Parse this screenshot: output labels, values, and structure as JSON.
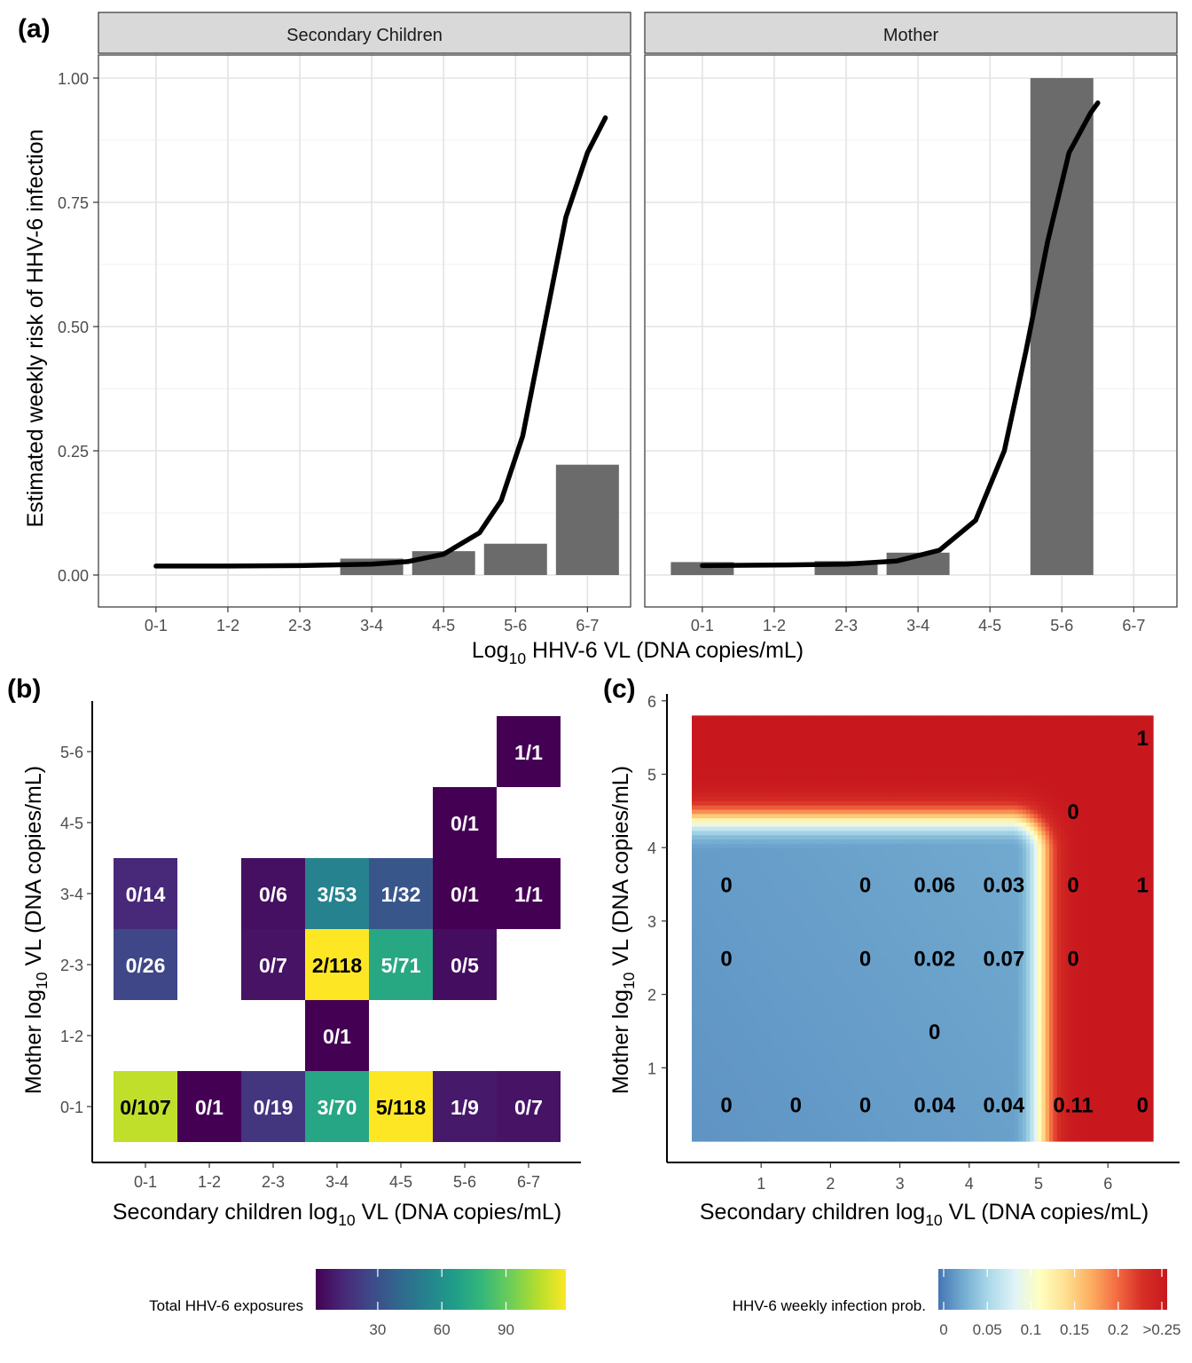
{
  "panel_labels": {
    "a": "(a)",
    "b": "(b)",
    "c": "(c)"
  },
  "chart_data": [
    {
      "panel": "(a)",
      "type": "bar",
      "ylabel": "Estimated weekly risk of HHV-6 infection",
      "xlabel_main": "Log",
      "xlabel_sub": "10",
      "xlabel_rest": " HHV-6 VL (DNA copies/mL)",
      "categories": [
        "0-1",
        "1-2",
        "2-3",
        "3-4",
        "4-5",
        "5-6",
        "6-7"
      ],
      "ylim": [
        0,
        1.05
      ],
      "yticks": [
        0,
        0.25,
        0.5,
        0.75,
        1.0
      ],
      "ytick_labels": [
        "0.00",
        "0.25",
        "0.50",
        "0.75",
        "1.00"
      ],
      "grid": true,
      "bar_color": "#6b6b6b",
      "facets": [
        {
          "name": "Secondary Children",
          "bars": [
            null,
            null,
            null,
            0.033,
            0.048,
            0.063,
            0.222
          ],
          "curve": [
            [
              0.5,
              0.018
            ],
            [
              1.5,
              0.018
            ],
            [
              2.5,
              0.019
            ],
            [
              3.5,
              0.022
            ],
            [
              4.0,
              0.027
            ],
            [
              4.5,
              0.042
            ],
            [
              5.0,
              0.085
            ],
            [
              5.3,
              0.15
            ],
            [
              5.6,
              0.28
            ],
            [
              5.9,
              0.5
            ],
            [
              6.2,
              0.72
            ],
            [
              6.5,
              0.85
            ],
            [
              6.75,
              0.92
            ]
          ]
        },
        {
          "name": "Mother",
          "bars": [
            0.026,
            null,
            0.028,
            0.045,
            null,
            1.0,
            null
          ],
          "curve": [
            [
              0.5,
              0.019
            ],
            [
              1.5,
              0.02
            ],
            [
              2.5,
              0.022
            ],
            [
              3.2,
              0.028
            ],
            [
              3.8,
              0.05
            ],
            [
              4.3,
              0.11
            ],
            [
              4.7,
              0.25
            ],
            [
              5.0,
              0.45
            ],
            [
              5.3,
              0.67
            ],
            [
              5.6,
              0.85
            ],
            [
              5.9,
              0.93
            ],
            [
              6.0,
              0.95
            ]
          ]
        }
      ]
    },
    {
      "panel": "(b)",
      "type": "heatmap",
      "xlabel_main": "Secondary children log",
      "xlabel_sub": "10",
      "xlabel_rest": " VL (DNA copies/mL)",
      "ylabel_main": "Mother log",
      "ylabel_sub": "10",
      "ylabel_rest": " VL (DNA copies/mL)",
      "x_categories": [
        "0-1",
        "1-2",
        "2-3",
        "3-4",
        "4-5",
        "5-6",
        "6-7"
      ],
      "y_categories": [
        "0-1",
        "1-2",
        "2-3",
        "3-4",
        "4-5",
        "5-6"
      ],
      "cells": [
        {
          "x": "0-1",
          "y": "0-1",
          "label": "0/107",
          "total": 107
        },
        {
          "x": "1-2",
          "y": "0-1",
          "label": "0/1",
          "total": 1
        },
        {
          "x": "2-3",
          "y": "0-1",
          "label": "0/19",
          "total": 19
        },
        {
          "x": "3-4",
          "y": "0-1",
          "label": "3/70",
          "total": 70
        },
        {
          "x": "4-5",
          "y": "0-1",
          "label": "5/118",
          "total": 118
        },
        {
          "x": "5-6",
          "y": "0-1",
          "label": "1/9",
          "total": 9
        },
        {
          "x": "6-7",
          "y": "0-1",
          "label": "0/7",
          "total": 7
        },
        {
          "x": "3-4",
          "y": "1-2",
          "label": "0/1",
          "total": 1
        },
        {
          "x": "0-1",
          "y": "2-3",
          "label": "0/26",
          "total": 26
        },
        {
          "x": "2-3",
          "y": "2-3",
          "label": "0/7",
          "total": 7
        },
        {
          "x": "3-4",
          "y": "2-3",
          "label": "2/118",
          "total": 118
        },
        {
          "x": "4-5",
          "y": "2-3",
          "label": "5/71",
          "total": 71
        },
        {
          "x": "5-6",
          "y": "2-3",
          "label": "0/5",
          "total": 5
        },
        {
          "x": "0-1",
          "y": "3-4",
          "label": "0/14",
          "total": 14
        },
        {
          "x": "2-3",
          "y": "3-4",
          "label": "0/6",
          "total": 6
        },
        {
          "x": "3-4",
          "y": "3-4",
          "label": "3/53",
          "total": 53
        },
        {
          "x": "4-5",
          "y": "3-4",
          "label": "1/32",
          "total": 32
        },
        {
          "x": "5-6",
          "y": "3-4",
          "label": "0/1",
          "total": 1
        },
        {
          "x": "6-7",
          "y": "3-4",
          "label": "1/1",
          "total": 1
        },
        {
          "x": "5-6",
          "y": "4-5",
          "label": "0/1",
          "total": 1
        },
        {
          "x": "6-7",
          "y": "5-6",
          "label": "1/1",
          "total": 1
        }
      ],
      "legend": {
        "title": "Total HHV-6 exposures",
        "range": [
          1,
          118
        ],
        "ticks": [
          30,
          60,
          90
        ],
        "placement": "bottom",
        "colors": [
          "#440154",
          "#482878",
          "#3e4a89",
          "#31688e",
          "#26828e",
          "#1f9e89",
          "#35b779",
          "#6dcd59",
          "#b4de2c",
          "#fde725"
        ]
      }
    },
    {
      "panel": "(c)",
      "type": "heatmap",
      "xlabel_main": "Secondary children log",
      "xlabel_sub": "10",
      "xlabel_rest": " VL (DNA copies/mL)",
      "ylabel_main": "Mother log",
      "ylabel_sub": "10",
      "ylabel_rest": " VL (DNA copies/mL)",
      "xlim": [
        -0.1,
        6.7
      ],
      "ylim": [
        -0.3,
        6.1
      ],
      "xticks": [
        1,
        2,
        3,
        4,
        5,
        6
      ],
      "yticks": [
        1,
        2,
        3,
        4,
        5,
        6
      ],
      "surface_extent": {
        "x": [
          0,
          6.65
        ],
        "y": [
          0,
          5.8
        ]
      },
      "contour": {
        "x_threshold": 5.05,
        "y_threshold": 4.4,
        "transition_width": 0.45,
        "corner_radius": 0.45
      },
      "labels": [
        {
          "x": 0.5,
          "y": 0.5,
          "text": "0"
        },
        {
          "x": 1.5,
          "y": 0.5,
          "text": "0"
        },
        {
          "x": 2.5,
          "y": 0.5,
          "text": "0"
        },
        {
          "x": 3.5,
          "y": 0.5,
          "text": "0.04"
        },
        {
          "x": 4.5,
          "y": 0.5,
          "text": "0.04"
        },
        {
          "x": 5.5,
          "y": 0.5,
          "text": "0.11"
        },
        {
          "x": 6.5,
          "y": 0.5,
          "text": "0"
        },
        {
          "x": 3.5,
          "y": 1.5,
          "text": "0"
        },
        {
          "x": 0.5,
          "y": 2.5,
          "text": "0"
        },
        {
          "x": 2.5,
          "y": 2.5,
          "text": "0"
        },
        {
          "x": 3.5,
          "y": 2.5,
          "text": "0.02"
        },
        {
          "x": 4.5,
          "y": 2.5,
          "text": "0.07"
        },
        {
          "x": 5.5,
          "y": 2.5,
          "text": "0"
        },
        {
          "x": 0.5,
          "y": 3.5,
          "text": "0"
        },
        {
          "x": 2.5,
          "y": 3.5,
          "text": "0"
        },
        {
          "x": 3.5,
          "y": 3.5,
          "text": "0.06"
        },
        {
          "x": 4.5,
          "y": 3.5,
          "text": "0.03"
        },
        {
          "x": 5.5,
          "y": 3.5,
          "text": "0"
        },
        {
          "x": 6.5,
          "y": 3.5,
          "text": "1"
        },
        {
          "x": 5.5,
          "y": 4.5,
          "text": "0"
        },
        {
          "x": 6.5,
          "y": 5.5,
          "text": "1"
        }
      ],
      "legend": {
        "title": "HHV-6 weekly infection prob.",
        "ticks": [
          0,
          0.05,
          0.1,
          0.15,
          0.2,
          0.25
        ],
        "tick_labels": [
          "0",
          "0.05",
          "0.1",
          "0.15",
          "0.2",
          ">0.25"
        ],
        "placement": "bottom",
        "colors": [
          "#4575b4",
          "#74add1",
          "#abd9e9",
          "#e0f3f8",
          "#ffffbf",
          "#fee090",
          "#fdae61",
          "#f46d43",
          "#d73027",
          "#c8181e"
        ]
      }
    }
  ]
}
